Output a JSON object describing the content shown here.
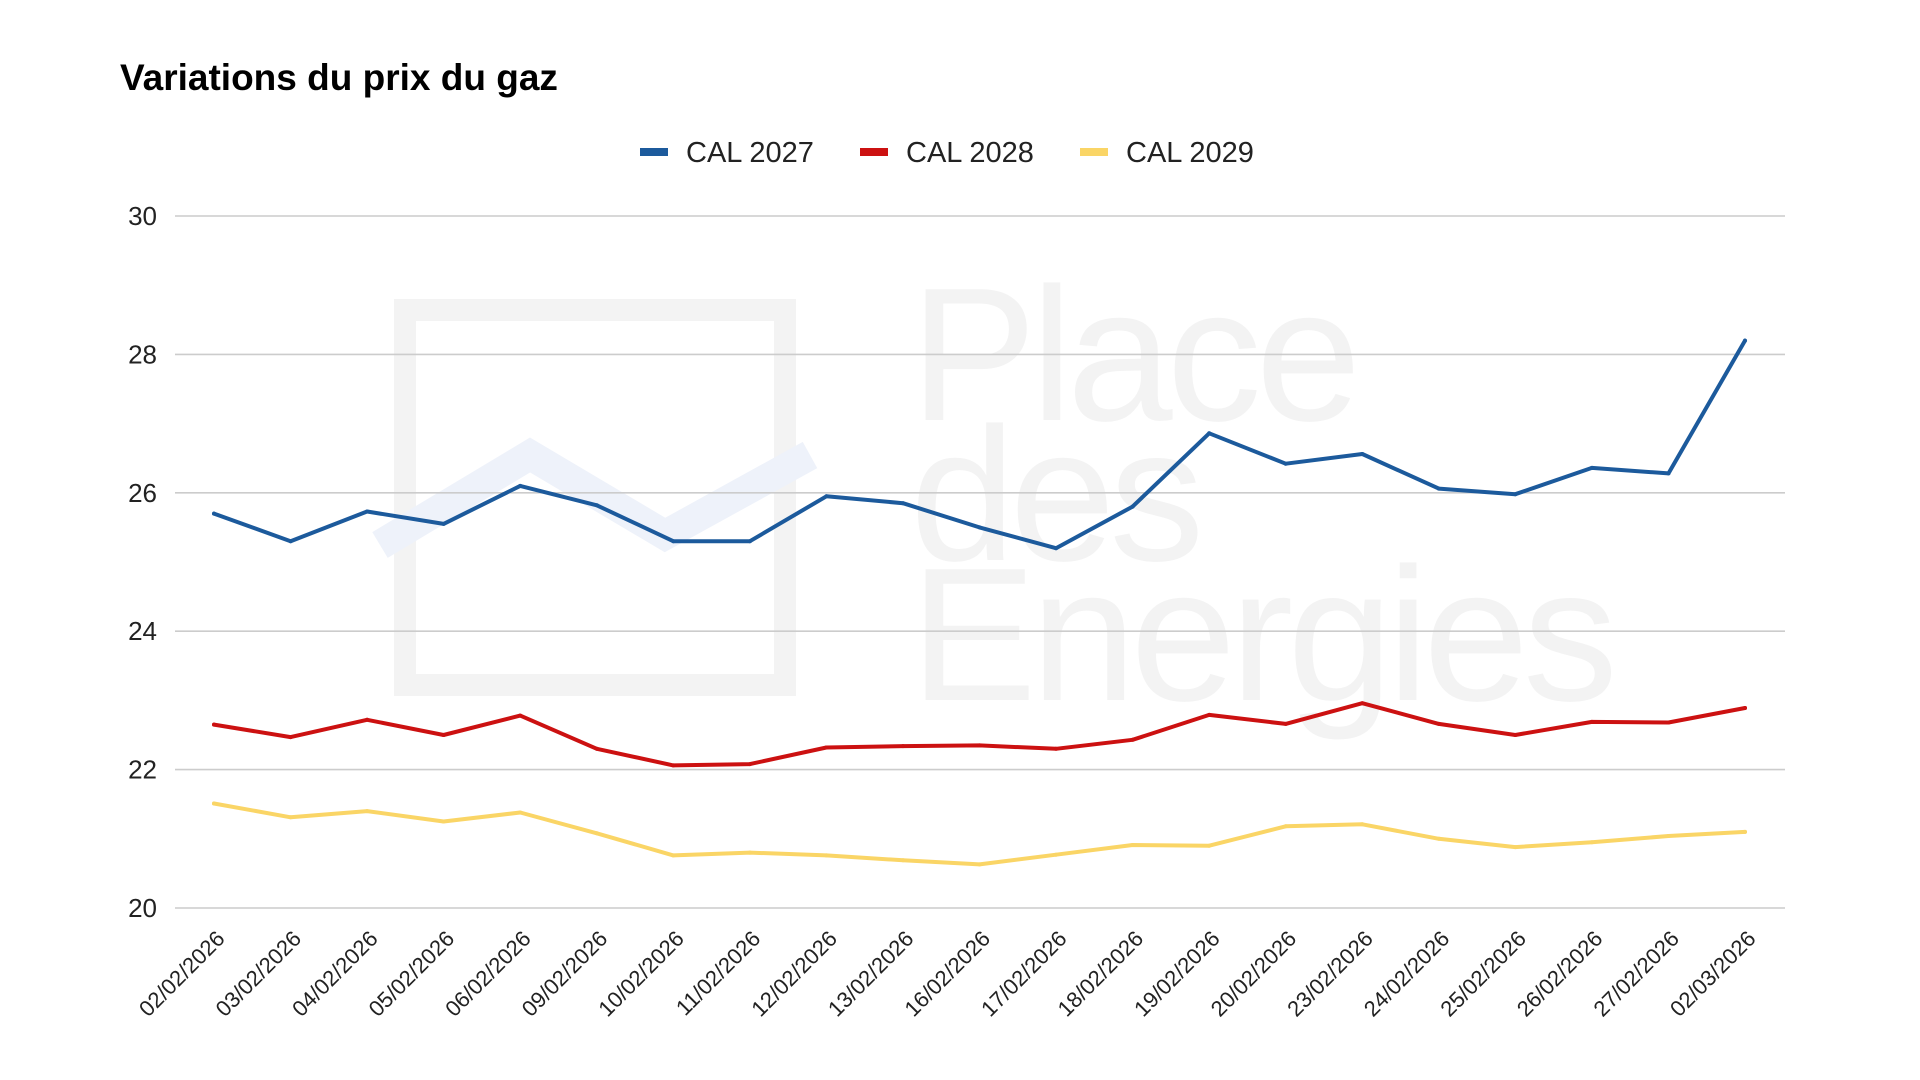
{
  "chart_data": {
    "type": "line",
    "title": "Variations du prix du gaz",
    "xlabel": "",
    "ylabel": "",
    "ylim": [
      20,
      30
    ],
    "yticks": [
      20,
      22,
      24,
      26,
      28,
      30
    ],
    "grid": true,
    "legend_position": "top-center",
    "x": [
      "02/02/2026",
      "03/02/2026",
      "04/02/2026",
      "05/02/2026",
      "06/02/2026",
      "09/02/2026",
      "10/02/2026",
      "11/02/2026",
      "12/02/2026",
      "13/02/2026",
      "16/02/2026",
      "17/02/2026",
      "18/02/2026",
      "19/02/2026",
      "20/02/2026",
      "23/02/2026",
      "24/02/2026",
      "25/02/2026",
      "26/02/2026",
      "27/02/2026",
      "02/03/2026"
    ],
    "series": [
      {
        "name": "CAL 2027",
        "color": "#1c5a9c",
        "values": [
          25.7,
          25.3,
          25.73,
          25.55,
          26.1,
          25.82,
          25.3,
          25.3,
          25.95,
          25.85,
          25.5,
          25.2,
          25.8,
          26.86,
          26.42,
          26.56,
          26.06,
          25.98,
          26.36,
          26.28,
          28.2
        ]
      },
      {
        "name": "CAL 2028",
        "color": "#cc1111",
        "values": [
          22.65,
          22.47,
          22.72,
          22.5,
          22.78,
          22.3,
          22.06,
          22.08,
          22.32,
          22.34,
          22.35,
          22.3,
          22.43,
          22.79,
          22.66,
          22.96,
          22.66,
          22.5,
          22.69,
          22.68,
          22.89
        ]
      },
      {
        "name": "CAL 2029",
        "color": "#fad566",
        "values": [
          21.51,
          21.31,
          21.4,
          21.25,
          21.38,
          21.08,
          20.76,
          20.8,
          20.76,
          20.69,
          20.63,
          20.77,
          20.91,
          20.9,
          21.18,
          21.21,
          21.0,
          20.88,
          20.95,
          21.04,
          21.1
        ]
      }
    ]
  },
  "watermark": {
    "lines": [
      "Place",
      "des",
      "Energies"
    ],
    "icon": "place-des-energies-logo"
  }
}
